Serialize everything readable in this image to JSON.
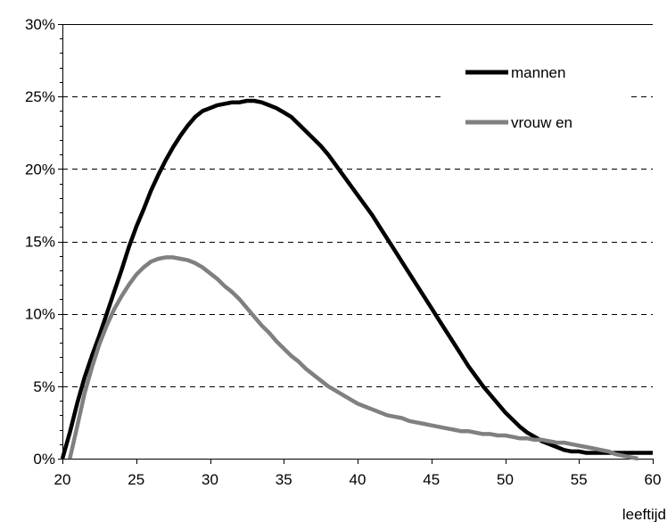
{
  "chart_data": {
    "type": "line",
    "title": "",
    "xlabel": "leeftijd",
    "ylabel": "",
    "xlim": [
      20,
      60
    ],
    "ylim": [
      0,
      30
    ],
    "x_ticks": [
      20,
      25,
      30,
      35,
      40,
      45,
      50,
      55,
      60
    ],
    "y_ticks": [
      0,
      5,
      10,
      15,
      20,
      25,
      30
    ],
    "y_tick_labels": [
      "0%",
      "5%",
      "10%",
      "15%",
      "20%",
      "25%",
      "30%"
    ],
    "grid": "horizontal dashed",
    "legend": "top-right",
    "series": [
      {
        "name": "mannen",
        "color": "#000000",
        "x": [
          20,
          20.5,
          21,
          21.5,
          22,
          22.5,
          23,
          23.5,
          24,
          24.5,
          25,
          25.5,
          26,
          26.5,
          27,
          27.5,
          28,
          28.5,
          29,
          29.5,
          30,
          30.5,
          31,
          31.5,
          32,
          32.5,
          33,
          33.5,
          34,
          34.5,
          35,
          35.5,
          36,
          36.5,
          37,
          37.5,
          38,
          38.5,
          39,
          39.5,
          40,
          40.5,
          41,
          41.5,
          42,
          42.5,
          43,
          43.5,
          44,
          44.5,
          45,
          45.5,
          46,
          46.5,
          47,
          47.5,
          48,
          48.5,
          49,
          49.5,
          50,
          50.5,
          51,
          51.5,
          52,
          52.5,
          53,
          53.5,
          54,
          54.5,
          55,
          55.5,
          56,
          56.5,
          57,
          57.5,
          58,
          58.5,
          59,
          59.5,
          60
        ],
        "values": [
          0,
          1.8,
          3.8,
          5.6,
          7.1,
          8.5,
          10.0,
          11.5,
          13.0,
          14.6,
          16.0,
          17.2,
          18.5,
          19.6,
          20.6,
          21.5,
          22.3,
          23.0,
          23.6,
          24.0,
          24.2,
          24.4,
          24.5,
          24.6,
          24.6,
          24.7,
          24.7,
          24.6,
          24.4,
          24.2,
          23.9,
          23.6,
          23.1,
          22.6,
          22.1,
          21.6,
          21.0,
          20.3,
          19.6,
          18.9,
          18.2,
          17.5,
          16.8,
          16.0,
          15.2,
          14.4,
          13.6,
          12.8,
          12.0,
          11.2,
          10.4,
          9.6,
          8.8,
          8.0,
          7.2,
          6.4,
          5.7,
          5.0,
          4.4,
          3.8,
          3.2,
          2.7,
          2.2,
          1.8,
          1.5,
          1.2,
          1.0,
          0.8,
          0.6,
          0.5,
          0.5,
          0.4,
          0.4,
          0.4,
          0.4,
          0.4,
          0.4,
          0.4,
          0.4,
          0.4,
          0.4
        ]
      },
      {
        "name": "vrouw en",
        "color": "#808080",
        "x": [
          20.5,
          21,
          21.5,
          22,
          22.5,
          23,
          23.5,
          24,
          24.5,
          25,
          25.5,
          26,
          26.5,
          27,
          27.5,
          28,
          28.5,
          29,
          29.5,
          30,
          30.5,
          31,
          31.5,
          32,
          32.5,
          33,
          33.5,
          34,
          34.5,
          35,
          35.5,
          36,
          36.5,
          37,
          37.5,
          38,
          38.5,
          39,
          39.5,
          40,
          40.5,
          41,
          41.5,
          42,
          42.5,
          43,
          43.5,
          44,
          44.5,
          45,
          45.5,
          46,
          46.5,
          47,
          47.5,
          48,
          48.5,
          49,
          49.5,
          50,
          50.5,
          51,
          51.5,
          52,
          52.5,
          53,
          53.5,
          54,
          54.5,
          55,
          55.5,
          56,
          56.5,
          57,
          57.5,
          58,
          58.5,
          59
        ],
        "values": [
          0,
          2.2,
          4.5,
          6.3,
          7.9,
          9.2,
          10.3,
          11.2,
          12.0,
          12.7,
          13.2,
          13.6,
          13.8,
          13.9,
          13.9,
          13.8,
          13.7,
          13.5,
          13.2,
          12.8,
          12.4,
          11.9,
          11.5,
          11.0,
          10.4,
          9.8,
          9.2,
          8.7,
          8.1,
          7.6,
          7.1,
          6.7,
          6.2,
          5.8,
          5.4,
          5.0,
          4.7,
          4.4,
          4.1,
          3.8,
          3.6,
          3.4,
          3.2,
          3.0,
          2.9,
          2.8,
          2.6,
          2.5,
          2.4,
          2.3,
          2.2,
          2.1,
          2.0,
          1.9,
          1.9,
          1.8,
          1.7,
          1.7,
          1.6,
          1.6,
          1.5,
          1.4,
          1.4,
          1.3,
          1.3,
          1.2,
          1.1,
          1.1,
          1.0,
          0.9,
          0.8,
          0.7,
          0.6,
          0.5,
          0.3,
          0.2,
          0.1,
          0
        ]
      }
    ]
  }
}
